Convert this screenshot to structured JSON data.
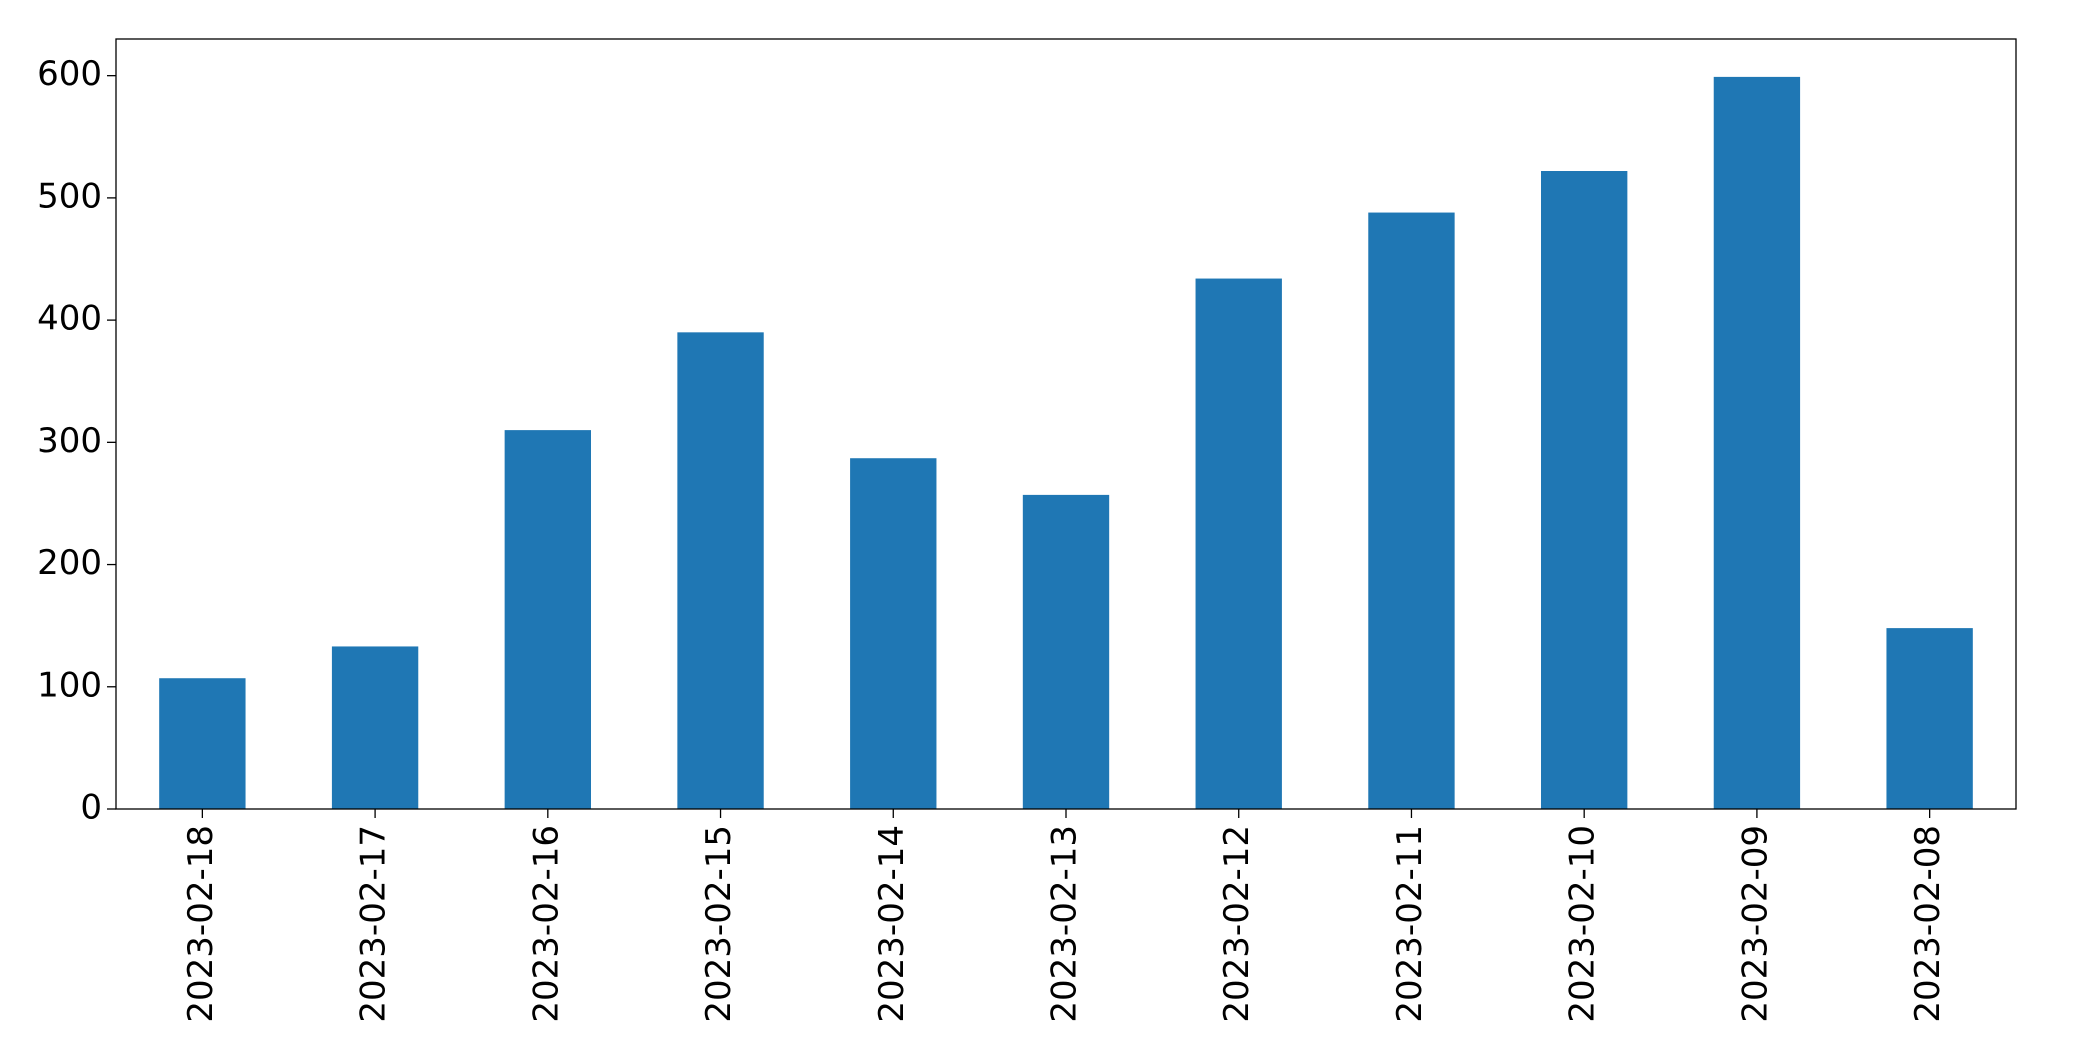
{
  "chart_data": {
    "type": "bar",
    "categories": [
      "2023-02-18",
      "2023-02-17",
      "2023-02-16",
      "2023-02-15",
      "2023-02-14",
      "2023-02-13",
      "2023-02-12",
      "2023-02-11",
      "2023-02-10",
      "2023-02-09",
      "2023-02-08"
    ],
    "values": [
      107,
      133,
      310,
      390,
      287,
      257,
      434,
      488,
      522,
      599,
      148
    ],
    "color": "#1f77b4",
    "ylim": [
      0,
      630
    ],
    "yticks": [
      0,
      100,
      200,
      300,
      400,
      500,
      600
    ],
    "grid": false
  }
}
